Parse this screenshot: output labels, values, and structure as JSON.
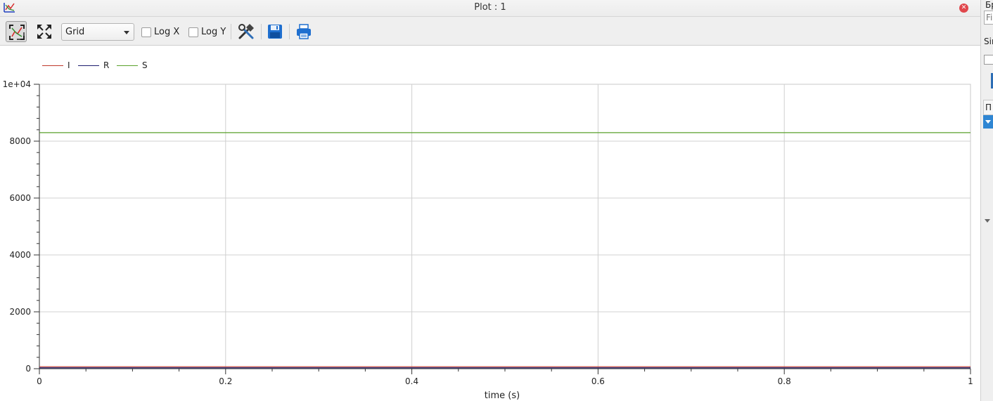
{
  "window": {
    "title": "Plot : 1"
  },
  "toolbar": {
    "grid_select_value": "Grid",
    "log_x_label": "Log X",
    "log_y_label": "Log Y"
  },
  "right_panel": {
    "text_top": "Бр",
    "filter_placeholder": "Fi",
    "text_sim": "Sin",
    "header_text": "П"
  },
  "chart_data": {
    "type": "line",
    "xlabel": "time (s)",
    "ylabel": "",
    "xlim": [
      0,
      1
    ],
    "ylim": [
      0,
      10000
    ],
    "grid": true,
    "legend_position": "top-left",
    "x_ticks": [
      {
        "v": 0,
        "label": "0"
      },
      {
        "v": 0.2,
        "label": "0.2"
      },
      {
        "v": 0.4,
        "label": "0.4"
      },
      {
        "v": 0.6,
        "label": "0.6"
      },
      {
        "v": 0.8,
        "label": "0.8"
      },
      {
        "v": 1,
        "label": "1"
      }
    ],
    "y_ticks": [
      {
        "v": 0,
        "label": "0"
      },
      {
        "v": 2000,
        "label": "2000"
      },
      {
        "v": 4000,
        "label": "4000"
      },
      {
        "v": 6000,
        "label": "6000"
      },
      {
        "v": 8000,
        "label": "8000"
      },
      {
        "v": 10000,
        "label": "1e+04"
      }
    ],
    "series": [
      {
        "name": "I",
        "color": "#c0392b",
        "x": [
          0,
          1
        ],
        "y": [
          70,
          70
        ]
      },
      {
        "name": "R",
        "color": "#1c1c6e",
        "x": [
          0,
          1
        ],
        "y": [
          30,
          30
        ]
      },
      {
        "name": "S",
        "color": "#5aa12b",
        "x": [
          0,
          1
        ],
        "y": [
          8300,
          8300
        ]
      }
    ]
  }
}
